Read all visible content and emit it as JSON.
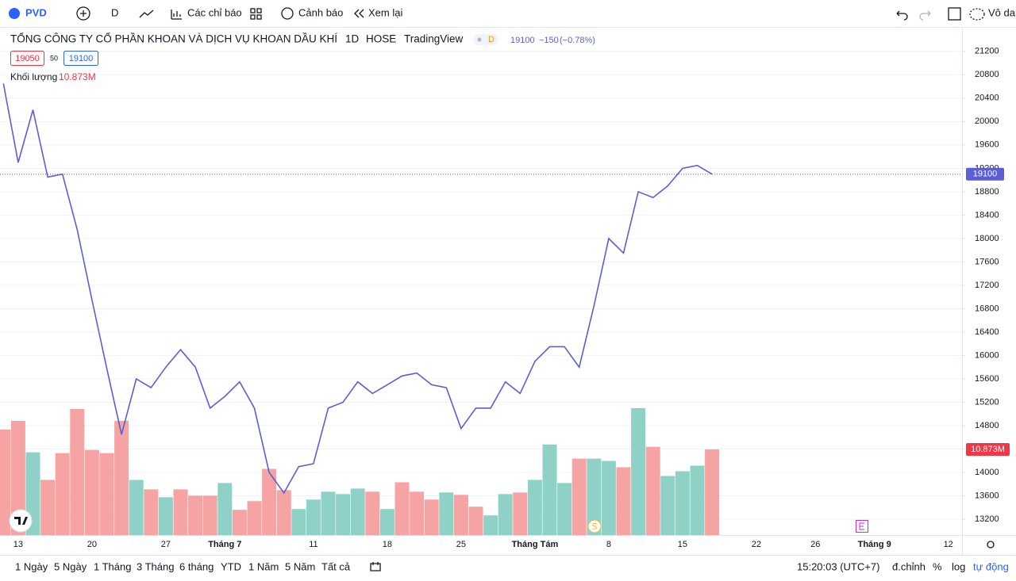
{
  "toolbar": {
    "symbol": "PVD",
    "interval": "D",
    "indicators": "Các chỉ báo",
    "alerts": "Cảnh báo",
    "replay": "Xem lại",
    "layout": "Vô dan"
  },
  "chart_data": {
    "type": "line",
    "title": "TỔNG CÔNG TY CỔ PHẦN KHOAN VÀ DỊCH VỤ KHOAN DẦU KHÍ",
    "interval": "1D",
    "exchange": "HOSE",
    "source": "TradingView",
    "badge": "D",
    "change": "−150",
    "change_pct": "(−0.78%)",
    "bid": "19050",
    "spread": "50",
    "volume_label": "Khối lượng",
    "categories": [
      null,
      "13",
      null,
      null,
      null,
      null,
      "20",
      null,
      null,
      null,
      null,
      "27",
      null,
      null,
      null,
      "Tháng 7",
      null,
      null,
      null,
      null,
      null,
      "11",
      null,
      null,
      null,
      null,
      "18",
      null,
      null,
      null,
      null,
      "25",
      null,
      null,
      null,
      null,
      "Tháng Tám",
      null,
      null,
      null,
      null,
      "8",
      null,
      null,
      null,
      null,
      "15",
      null,
      null,
      null,
      null,
      "22",
      null,
      null,
      null,
      "26",
      null,
      null,
      null,
      "Tháng 9",
      null,
      null,
      null,
      null,
      "12"
    ],
    "series": [
      {
        "color": "#5b5fd6",
        "values": [
          20650,
          19300,
          20200,
          19050,
          19100,
          18150,
          16950,
          15780,
          14650,
          15600,
          15450,
          15800,
          16100,
          15800,
          15100,
          15300,
          15550,
          15100,
          14000,
          13650,
          14100,
          14150,
          15100,
          15200,
          15550,
          15350,
          15500,
          15650,
          15700,
          15500,
          15450,
          14750,
          15100,
          15100,
          15550,
          15350,
          15900,
          16150,
          16150,
          15800,
          16850,
          18000,
          17750,
          18800,
          18700,
          18900,
          19200,
          19250,
          19100,
          null,
          null,
          null,
          null,
          null,
          null,
          null,
          null,
          null,
          null,
          null,
          null,
          null,
          null,
          null,
          null
        ]
      },
      {
        "name": "Khối lượng",
        "type": "bar",
        "axis": "y2",
        "values": [
          13.4,
          14.5,
          10.5,
          7.0,
          10.4,
          16.0,
          10.8,
          10.4,
          14.5,
          7.0,
          5.8,
          4.8,
          5.8,
          5.0,
          5.0,
          6.6,
          3.2,
          4.3,
          8.4,
          5.7,
          3.3,
          4.5,
          5.5,
          5.2,
          5.9,
          5.5,
          3.3,
          6.7,
          5.5,
          4.5,
          5.4,
          5.1,
          3.6,
          2.5,
          5.2,
          5.4,
          7.0,
          11.5,
          6.6,
          9.7,
          9.7,
          9.4,
          8.6,
          16.1,
          11.2,
          7.5,
          8.1,
          8.8,
          10.873,
          null,
          null,
          null,
          null,
          null,
          null,
          null,
          null,
          null,
          null,
          null,
          null,
          null,
          null,
          null,
          null
        ],
        "value_labels": [
          null,
          null,
          null,
          null,
          null,
          null,
          null,
          null,
          null,
          null,
          null,
          null,
          null,
          null,
          null,
          null,
          null,
          null,
          null,
          null,
          null,
          null,
          null,
          null,
          null,
          null,
          null,
          null,
          null,
          null,
          null,
          null,
          null,
          null,
          null,
          null,
          null,
          null,
          null,
          null,
          null,
          null,
          null,
          null,
          null,
          null,
          null,
          null,
          "10.873M",
          null,
          null,
          null,
          null,
          null,
          null,
          null,
          null,
          null,
          null,
          null,
          null,
          null,
          null,
          null,
          null
        ],
        "colors": [
          "#f5a3a3",
          "#f5a3a3",
          "#8fd1c6",
          "#f5a3a3",
          "#f5a3a3",
          "#f5a3a3",
          "#f5a3a3",
          "#f5a3a3",
          "#f5a3a3",
          "#8fd1c6",
          "#f5a3a3",
          "#8fd1c6",
          "#f5a3a3",
          "#f5a3a3",
          "#f5a3a3",
          "#8fd1c6",
          "#f5a3a3",
          "#f5a3a3",
          "#f5a3a3",
          "#f5a3a3",
          "#8fd1c6",
          "#8fd1c6",
          "#8fd1c6",
          "#8fd1c6",
          "#8fd1c6",
          "#f5a3a3",
          "#8fd1c6",
          "#f5a3a3",
          "#f5a3a3",
          "#f5a3a3",
          "#8fd1c6",
          "#f5a3a3",
          "#f5a3a3",
          "#8fd1c6",
          "#8fd1c6",
          "#f5a3a3",
          "#8fd1c6",
          "#8fd1c6",
          "#8fd1c6",
          "#f5a3a3",
          "#8fd1c6",
          "#8fd1c6",
          "#f5a3a3",
          "#8fd1c6",
          "#f5a3a3",
          "#8fd1c6",
          "#8fd1c6",
          "#8fd1c6",
          "#f5a3a3",
          null,
          null,
          null,
          null,
          null,
          null,
          null,
          null,
          null,
          null,
          null,
          null,
          null,
          null,
          null,
          null
        ]
      }
    ],
    "ylim": [
      12930,
      21590
    ],
    "yticks": [
      13200,
      13600,
      14000,
      14400,
      14800,
      15200,
      15600,
      16000,
      16400,
      16800,
      17200,
      17600,
      18000,
      18400,
      18800,
      19200,
      19600,
      20000,
      20400,
      20800,
      21200
    ],
    "y2lim": [
      0,
      64.3
    ],
    "grid": true,
    "last_price_color": "#5b5fd6",
    "last_volume_color": "#f23645"
  },
  "bottom_bar": {
    "ranges": [
      "1 Ngày",
      "5 Ngày",
      "1 Tháng",
      "3 Tháng",
      "6 tháng",
      "YTD",
      "1 Năm",
      "5 Năm",
      "Tất cả"
    ],
    "clock": "15:20:03 (UTC+7)",
    "adjust": "đ.chỉnh",
    "percent": "%",
    "log": "log",
    "auto": "tự động"
  }
}
